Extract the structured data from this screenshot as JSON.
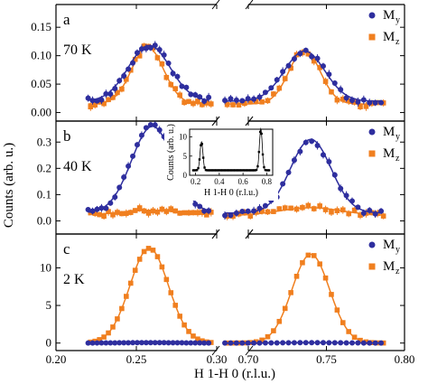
{
  "chart_data": {
    "type": "scatter",
    "xlabel": "H 1-H 0 (r.l.u.)",
    "ylabel": "Counts (arb. u.)",
    "x_ticks": [
      "0.20",
      "0.25",
      "0.30",
      "0.70",
      "0.75",
      "0.80"
    ],
    "colors": {
      "My": "#2e2e9e",
      "Mz": "#f07f1f"
    },
    "legend": {
      "My": "M",
      "My_sub": "y",
      "Mz": "M",
      "Mz_sub": "z"
    },
    "panels": [
      {
        "letter": "a",
        "temperature": "70 K",
        "ylim": [
          -0.015,
          0.19
        ],
        "yticks": [
          0,
          0.05,
          0.1,
          0.15
        ],
        "ytick_labels": [
          "0.00",
          "0.05",
          "0.10",
          "0.15"
        ],
        "My": {
          "left": {
            "center": 0.258,
            "amp": 0.098,
            "width": 0.013,
            "base": 0.02
          },
          "right": {
            "center": 0.736,
            "amp": 0.088,
            "width": 0.013,
            "base": 0.02
          }
        },
        "Mz": {
          "left": {
            "center": 0.257,
            "amp": 0.1,
            "width": 0.01,
            "base": 0.015
          },
          "right": {
            "center": 0.736,
            "amp": 0.095,
            "width": 0.01,
            "base": 0.015
          }
        }
      },
      {
        "letter": "b",
        "temperature": "40 K",
        "ylim": [
          -0.05,
          0.38
        ],
        "yticks": [
          0,
          0.1,
          0.2,
          0.3
        ],
        "ytick_labels": [
          "0.0",
          "0.1",
          "0.2",
          "0.3"
        ],
        "My": {
          "left": {
            "center": 0.26,
            "amp": 0.33,
            "width": 0.013,
            "base": 0.03
          },
          "right": {
            "center": 0.74,
            "amp": 0.28,
            "width": 0.013,
            "base": 0.03
          }
        },
        "Mz": {
          "left": {
            "center": 0.258,
            "amp": 0.02,
            "width": 0.02,
            "base": 0.02
          },
          "right": {
            "center": 0.74,
            "amp": 0.03,
            "width": 0.02,
            "base": 0.02
          }
        }
      },
      {
        "letter": "c",
        "temperature": "2 K",
        "ylim": [
          -1.0,
          14.5
        ],
        "yticks": [
          0,
          5,
          10
        ],
        "ytick_labels": [
          "0",
          "5",
          "10"
        ],
        "My": {
          "left": {
            "center": 0.258,
            "amp": 0.05,
            "width": 0.02,
            "base": 0.0
          },
          "right": {
            "center": 0.74,
            "amp": 0.05,
            "width": 0.02,
            "base": 0.0
          }
        },
        "Mz": {
          "left": {
            "center": 0.258,
            "amp": 12.6,
            "width": 0.012,
            "base": 0.0
          },
          "right": {
            "center": 0.74,
            "amp": 11.8,
            "width": 0.012,
            "base": 0.0
          }
        }
      }
    ],
    "x_segments": {
      "left": [
        0.2,
        0.3
      ],
      "right": [
        0.7,
        0.8
      ]
    },
    "data_x_range": {
      "left": [
        0.22,
        0.295
      ],
      "right": [
        0.685,
        0.785
      ]
    },
    "inset": {
      "ylabel": "Counts (arb. u.)",
      "xlabel": "H 1-H 0 (r.l.u.)",
      "xlim": [
        0.15,
        0.85
      ],
      "ylim": [
        0,
        12
      ],
      "xticks": [
        0.2,
        0.4,
        0.6,
        0.8
      ],
      "xtick_labels": [
        "0.2",
        "0.4",
        "0.6",
        "0.8"
      ],
      "yticks": [
        0,
        5,
        10
      ],
      "ytick_labels": [
        "0",
        "5",
        "10"
      ],
      "peaks": [
        {
          "center": 0.25,
          "amp": 7.4,
          "width": 0.012
        },
        {
          "center": 0.75,
          "amp": 10.8,
          "width": 0.012
        }
      ],
      "base": 1.3
    }
  }
}
